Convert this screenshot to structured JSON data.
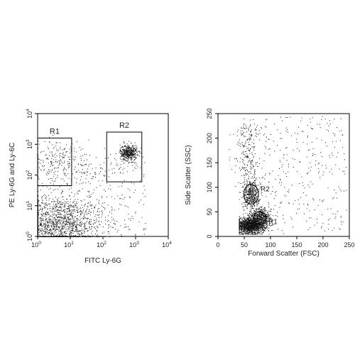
{
  "chart_data": [
    {
      "type": "scatter",
      "xlabel": "FITC Ly-6G",
      "ylabel": "PE Ly-6G and Ly-6C",
      "xscale": "log",
      "yscale": "log",
      "xlim": [
        1,
        10000
      ],
      "ylim": [
        1,
        10000
      ],
      "x_ticks": [
        {
          "value": 1,
          "base": "10",
          "exp": "0"
        },
        {
          "value": 10,
          "base": "10",
          "exp": "1"
        },
        {
          "value": 100,
          "base": "10",
          "exp": "2"
        },
        {
          "value": 1000,
          "base": "10",
          "exp": "3"
        },
        {
          "value": 10000,
          "base": "10",
          "exp": "4"
        }
      ],
      "y_ticks": [
        {
          "value": 1,
          "base": "10",
          "exp": "0"
        },
        {
          "value": 10,
          "base": "10",
          "exp": "1"
        },
        {
          "value": 100,
          "base": "10",
          "exp": "2"
        },
        {
          "value": 1000,
          "base": "10",
          "exp": "3"
        },
        {
          "value": 10000,
          "base": "10",
          "exp": "4"
        }
      ],
      "grid": false,
      "gates": [
        {
          "label": "R1",
          "shape": "rectangle",
          "x": [
            1,
            11
          ],
          "y": [
            45,
            1600
          ]
        },
        {
          "label": "R2",
          "shape": "rectangle",
          "x": [
            130,
            1550
          ],
          "y": [
            60,
            2500
          ]
        }
      ],
      "populations": [
        {
          "center": [
            4,
            2.5
          ],
          "spread": [
            0.7,
            0.45
          ]
        },
        {
          "center": [
            600,
            550
          ],
          "spread": [
            0.13,
            0.13
          ]
        },
        {
          "center": [
            5,
            300
          ],
          "spread": [
            0.55,
            0.35
          ]
        }
      ]
    },
    {
      "type": "scatter",
      "xlabel": "Forward Scatter (FSC)",
      "ylabel": "Side Scatter (SSC)",
      "xscale": "linear",
      "yscale": "linear",
      "xlim": [
        0,
        250
      ],
      "ylim": [
        0,
        250
      ],
      "x_ticks": [
        "0",
        "50",
        "100",
        "150",
        "200",
        "250"
      ],
      "y_ticks": [
        "0",
        "50",
        "100",
        "150",
        "200",
        "250"
      ],
      "grid": false,
      "gates": [
        {
          "label": "R1",
          "shape": "ellipse",
          "center": [
            80,
            37
          ],
          "radii": [
            12,
            13
          ]
        },
        {
          "label": "R2",
          "shape": "ellipse",
          "center": [
            63,
            86
          ],
          "radii": [
            14,
            20
          ]
        }
      ],
      "populations": [
        {
          "center": [
            60,
            22
          ],
          "spread": [
            14,
            8
          ]
        },
        {
          "center": [
            80,
            38
          ],
          "spread": [
            10,
            10
          ]
        },
        {
          "center": [
            63,
            86
          ],
          "spread": [
            8,
            14
          ]
        }
      ]
    }
  ]
}
